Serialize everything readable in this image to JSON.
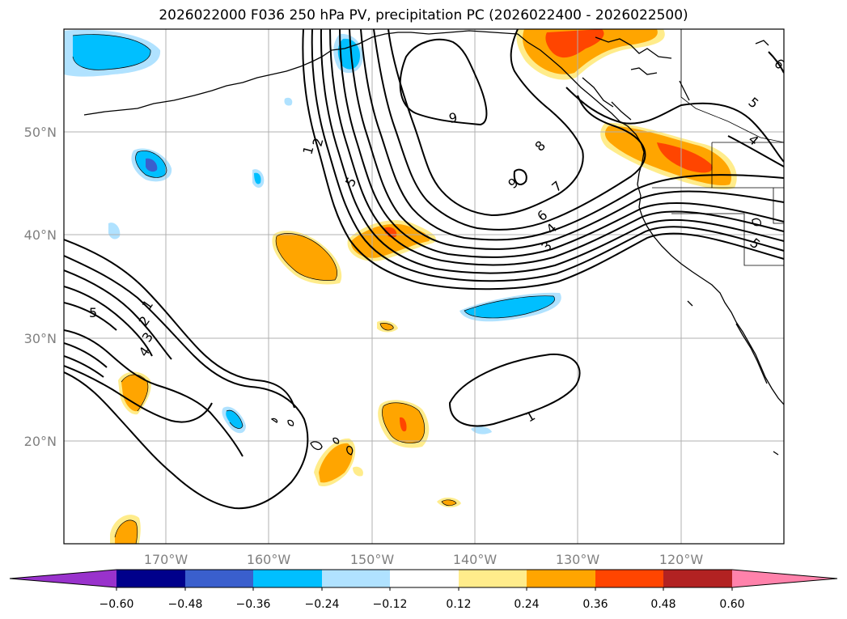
{
  "title": "2026022000 F036 250 hPa PV, precipitation PC (2026022400 - 2026022500)",
  "longitude_labels": [
    "170°W",
    "160°W",
    "150°W",
    "140°W",
    "130°W",
    "120°W"
  ],
  "latitude_labels": [
    "50°N",
    "40°N",
    "30°N",
    "20°N"
  ],
  "map_extent": {
    "lon_min": -180,
    "lon_max": -110,
    "lat_min": 10,
    "lat_max": 60
  },
  "pv_contour_labels": [
    "1",
    "2",
    "3",
    "4",
    "5",
    "6",
    "7",
    "8",
    "9",
    "9",
    "9",
    "1",
    "2",
    "3",
    "4",
    "5",
    "1",
    "3",
    "4",
    "5",
    "5",
    "6"
  ],
  "colorbar": {
    "tick_labels": [
      "−0.60",
      "−0.48",
      "−0.36",
      "−0.24",
      "−0.12",
      "0.12",
      "0.24",
      "0.36",
      "0.48",
      "0.60"
    ],
    "colors": [
      "#9932cc",
      "#00008b",
      "#3a5fcd",
      "#00bfff",
      "#b0e2ff",
      "#ffffff",
      "#ffec8b",
      "#ffa500",
      "#ff4500",
      "#b22222",
      "#ff82ab"
    ],
    "extend": "both"
  }
}
